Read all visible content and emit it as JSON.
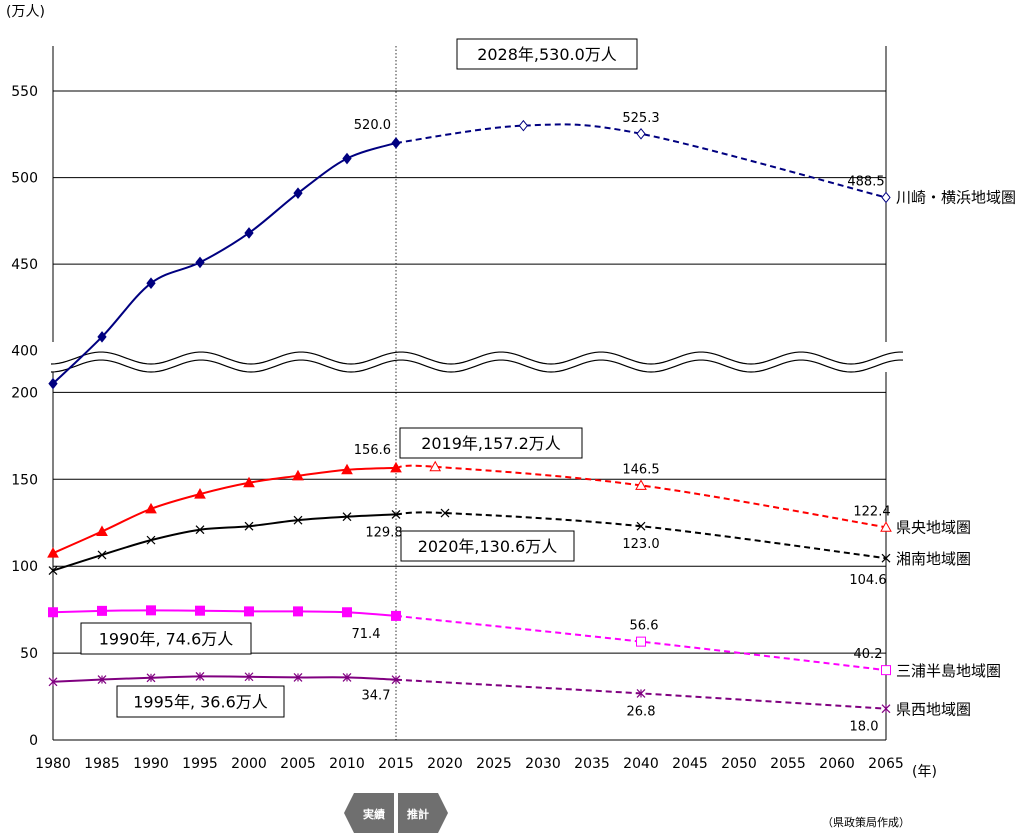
{
  "chart_data": {
    "type": "line",
    "y_unit_label": "(万人)",
    "x_unit_label": "(年)",
    "source_note": "（県政策局作成）",
    "actual_label": "実績",
    "projection_label": "推計",
    "x_ticks": [
      1980,
      1985,
      1990,
      1995,
      2000,
      2005,
      2010,
      2015,
      2020,
      2025,
      2030,
      2035,
      2040,
      2045,
      2050,
      2055,
      2060,
      2065
    ],
    "y_ticks_lower": [
      0,
      50,
      100,
      150,
      200
    ],
    "y_ticks_upper": [
      400,
      450,
      500,
      550
    ],
    "y_axis_break": "200–380",
    "grid": "horizontal",
    "actual_end_year": 2015,
    "series": [
      {
        "name": "川崎・横浜地域圏",
        "color": "#000080",
        "actual": [
          [
            1980,
            381
          ],
          [
            1985,
            408
          ],
          [
            1990,
            439
          ],
          [
            1995,
            451
          ],
          [
            2000,
            468
          ],
          [
            2005,
            491
          ],
          [
            2010,
            511
          ],
          [
            2015,
            520.0
          ]
        ],
        "projected": [
          [
            2015,
            520.0
          ],
          [
            2028,
            530.0
          ],
          [
            2040,
            525.3
          ],
          [
            2065,
            488.5
          ]
        ],
        "marker": "diamond",
        "value_labels": [
          "520.0",
          "525.3",
          "488.5"
        ]
      },
      {
        "name": "県央地域圏",
        "color": "#ff0000",
        "actual": [
          [
            1980,
            107.5
          ],
          [
            1985,
            120
          ],
          [
            1990,
            133
          ],
          [
            1995,
            141.5
          ],
          [
            2000,
            148
          ],
          [
            2005,
            152
          ],
          [
            2010,
            155.5
          ],
          [
            2015,
            156.6
          ]
        ],
        "projected": [
          [
            2015,
            156.6
          ],
          [
            2019,
            157.2
          ],
          [
            2040,
            146.5
          ],
          [
            2065,
            122.4
          ]
        ],
        "marker": "triangle",
        "value_labels": [
          "156.6",
          "146.5",
          "122.4"
        ]
      },
      {
        "name": "湘南地域圏",
        "color": "#000000",
        "actual": [
          [
            1980,
            97.5
          ],
          [
            1985,
            106.5
          ],
          [
            1990,
            115
          ],
          [
            1995,
            121
          ],
          [
            2000,
            123
          ],
          [
            2005,
            126.5
          ],
          [
            2010,
            128.5
          ],
          [
            2015,
            129.8
          ]
        ],
        "projected": [
          [
            2015,
            129.8
          ],
          [
            2020,
            130.6
          ],
          [
            2040,
            123.0
          ],
          [
            2065,
            104.6
          ]
        ],
        "marker": "x",
        "value_labels": [
          "129.8",
          "123.0",
          "104.6"
        ]
      },
      {
        "name": "三浦半島地域圏",
        "color": "#ff00ff",
        "actual": [
          [
            1980,
            73.5
          ],
          [
            1985,
            74.3
          ],
          [
            1990,
            74.6
          ],
          [
            1995,
            74.4
          ],
          [
            2000,
            74
          ],
          [
            2005,
            74
          ],
          [
            2010,
            73.5
          ],
          [
            2015,
            71.4
          ]
        ],
        "projected": [
          [
            2015,
            71.4
          ],
          [
            2040,
            56.6
          ],
          [
            2065,
            40.2
          ]
        ],
        "marker": "square",
        "value_labels": [
          "71.4",
          "56.6",
          "40.2"
        ]
      },
      {
        "name": "県西地域圏",
        "color": "#800080",
        "actual": [
          [
            1980,
            33.5
          ],
          [
            1985,
            34.8
          ],
          [
            1990,
            35.8
          ],
          [
            1995,
            36.6
          ],
          [
            2000,
            36.4
          ],
          [
            2005,
            36
          ],
          [
            2010,
            36
          ],
          [
            2015,
            34.7
          ]
        ],
        "projected": [
          [
            2015,
            34.7
          ],
          [
            2040,
            26.8
          ],
          [
            2065,
            18.0
          ]
        ],
        "marker": "asterisk",
        "value_labels": [
          "34.7",
          "26.8",
          "18.0"
        ]
      }
    ],
    "callouts": [
      {
        "text": "2028年,530.0万人"
      },
      {
        "text": "2019年,157.2万人"
      },
      {
        "text": "2020年,130.6万人"
      },
      {
        "text": "1990年, 74.6万人"
      },
      {
        "text": "1995年, 36.6万人"
      }
    ]
  }
}
